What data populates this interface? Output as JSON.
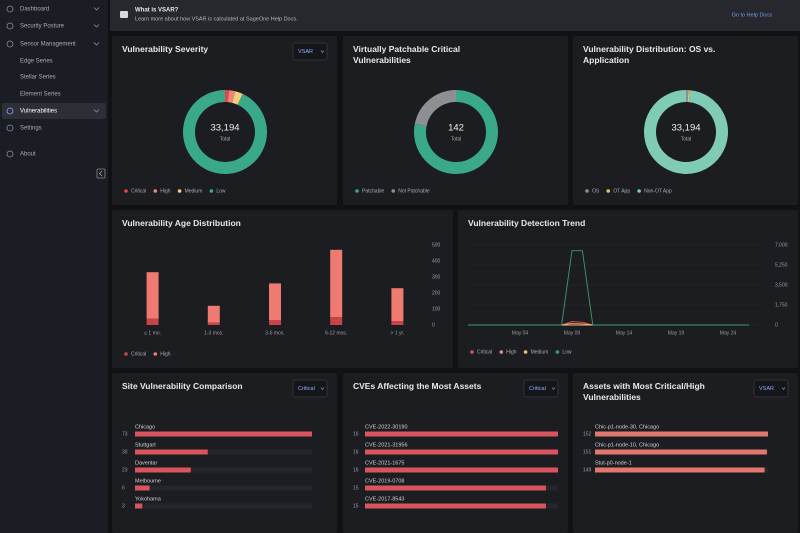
{
  "sidebar": {
    "items": [
      "Dashboard",
      "Security Posture",
      "Sensor Management",
      "Edge Series",
      "Stellar Series",
      "Element Series",
      "Vulnerabilities",
      "Settings",
      "About"
    ]
  },
  "banner": {
    "title": "What is VSAR?",
    "text": "Learn more about how VSAR is calculated at SageOne Help Docs.",
    "link": "Go to Help Docs"
  },
  "severity_panel": {
    "title": "Vulnerability Severity",
    "dropdown": "VSAR",
    "center_value": "33,194",
    "center_label": "Total",
    "chart": {
      "type": "pie",
      "categories": [
        "Critical",
        "High",
        "Medium",
        "Low"
      ],
      "values": [
        500,
        800,
        1000,
        30894
      ],
      "colors": [
        "#e0484d",
        "#f0857c",
        "#f1cf78",
        "#3aa98a"
      ]
    }
  },
  "patchable_panel": {
    "title": "Virtually Patchable Critical Vulnerabilities",
    "center_value": "142",
    "center_label": "Total",
    "chart": {
      "type": "pie",
      "categories": [
        "Patchable",
        "Not Patchable"
      ],
      "values": [
        111,
        31
      ],
      "colors": [
        "#3aa98a",
        "#8e8f93"
      ]
    }
  },
  "distribution_panel": {
    "title": "Vulnerability Distribution: OS vs. Application",
    "center_value": "33,194",
    "center_label": "Total",
    "chart": {
      "type": "pie",
      "categories": [
        "OS",
        "OT App",
        "Non-OT App"
      ],
      "values": [
        300,
        200,
        32694
      ],
      "colors": [
        "#8e8f93",
        "#e2c36d",
        "#7fcbb6"
      ]
    }
  },
  "age_panel": {
    "title": "Vulnerability Age Distribution",
    "chart": {
      "type": "bar",
      "stacked": true,
      "categories": [
        "≤ 1 mo.",
        "1-3 mos.",
        "3-6 mos.",
        "6-12 mos.",
        "> 1 yr."
      ],
      "series": [
        {
          "name": "Critical",
          "color": "#c9434b",
          "values": [
            40,
            15,
            30,
            50,
            25
          ]
        },
        {
          "name": "High",
          "color": "#ee7a72",
          "values": [
            290,
            105,
            230,
            420,
            205
          ]
        }
      ],
      "ylim": [
        0,
        500
      ],
      "yticks": [
        0,
        100,
        200,
        300,
        400,
        500
      ]
    }
  },
  "trend_panel": {
    "title": "Vulnerability Detection Trend",
    "chart": {
      "type": "line",
      "categories": [
        null,
        null,
        null,
        null,
        null,
        "May 04",
        null,
        null,
        null,
        null,
        "May 09",
        null,
        null,
        null,
        null,
        "May 14",
        null,
        null,
        null,
        null,
        "May 19",
        null,
        null,
        null,
        null,
        "May 24",
        null,
        null
      ],
      "series": [
        {
          "name": "Critical",
          "color": "#e05252",
          "values": [
            0,
            0,
            0,
            0,
            0,
            0,
            0,
            0,
            0,
            0,
            300,
            250,
            0,
            0,
            0,
            0,
            0,
            0,
            0,
            0,
            0,
            0,
            0,
            0,
            0,
            0,
            0,
            0
          ]
        },
        {
          "name": "High",
          "color": "#f08a80",
          "values": [
            0,
            0,
            0,
            0,
            0,
            0,
            0,
            0,
            0,
            0,
            150,
            100,
            0,
            0,
            0,
            0,
            0,
            0,
            0,
            0,
            0,
            0,
            0,
            0,
            0,
            0,
            0,
            0
          ]
        },
        {
          "name": "Medium",
          "color": "#f0c36b",
          "values": [
            0,
            0,
            0,
            0,
            0,
            0,
            0,
            0,
            0,
            0,
            0,
            0,
            0,
            0,
            0,
            0,
            0,
            0,
            0,
            0,
            0,
            0,
            0,
            0,
            0,
            0,
            0,
            0
          ]
        },
        {
          "name": "Low",
          "color": "#3f9a6a",
          "values": [
            0,
            0,
            0,
            0,
            0,
            0,
            0,
            0,
            0,
            0,
            6500,
            6500,
            0,
            0,
            0,
            0,
            0,
            0,
            0,
            0,
            0,
            0,
            0,
            0,
            0,
            0,
            0,
            0
          ]
        }
      ],
      "ylim": [
        0,
        7000
      ],
      "yticks": [
        0,
        {
          "value": 1750,
          "label": "1,750"
        },
        {
          "value": 3500,
          "label": "3,500"
        },
        {
          "value": 5250,
          "label": "5,250"
        },
        {
          "value": 7000,
          "label": "7,000"
        }
      ]
    }
  },
  "site_panel": {
    "title": "Site Vulnerability Comparison",
    "dropdown": "Critical",
    "chart": {
      "type": "hbar",
      "color": "#d9545e",
      "categories": [
        "Chicago",
        "Stuttgart",
        "Daventar",
        "Melbourne",
        "Yokohama"
      ],
      "values": [
        73,
        30,
        23,
        6,
        3
      ]
    }
  },
  "cve_panel": {
    "title": "CVEs Affecting the Most Assets",
    "dropdown": "Critical",
    "chart": {
      "type": "hbar",
      "color": "#d9545e",
      "categories": [
        "CVE-2022-30190",
        "CVE-2021-31956",
        "CVE-2021-1675",
        "CVE-2019-0708",
        "CVE-2017-8543"
      ],
      "values": [
        16,
        16,
        16,
        15,
        15
      ]
    }
  },
  "assets_panel": {
    "title": "Assets with Most Critical/High Vulnerabilities",
    "dropdown": "VSAR",
    "chart": {
      "type": "hbar",
      "color": "#e0786f",
      "categories": [
        "Chic-p1-node-30, Chicago",
        "Chic-p1-node-10, Chicago",
        "Stut-p0-node-1"
      ],
      "values": [
        152,
        151,
        149
      ]
    }
  }
}
